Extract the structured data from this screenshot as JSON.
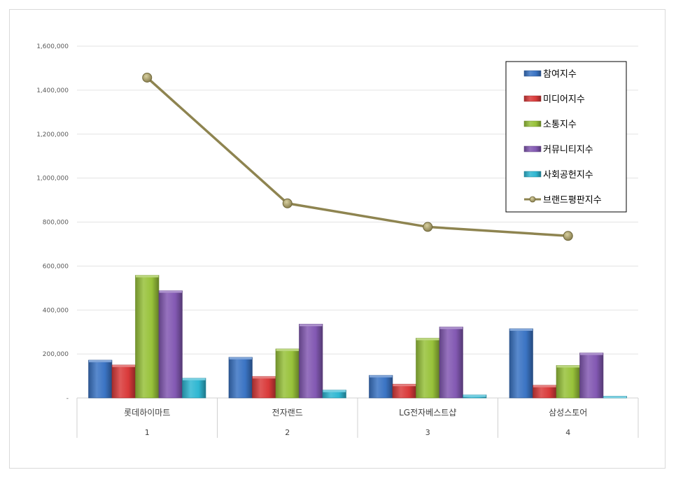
{
  "chart_data": {
    "type": "bar",
    "categories": [
      "롯데하이마트",
      "전자랜드",
      "LG전자베스트샵",
      "삼성스토어"
    ],
    "category_numbers": [
      "1",
      "2",
      "3",
      "4"
    ],
    "ylim": [
      0,
      1600000
    ],
    "yticks": [
      {
        "value": 0,
        "label": "-"
      },
      {
        "value": 200000,
        "label": "200,000"
      },
      {
        "value": 400000,
        "label": "400,000"
      },
      {
        "value": 600000,
        "label": "600,000"
      },
      {
        "value": 800000,
        "label": "800,000"
      },
      {
        "value": 1000000,
        "label": "1,000,000"
      },
      {
        "value": 1200000,
        "label": "1,200,000"
      },
      {
        "value": 1400000,
        "label": "1,400,000"
      },
      {
        "value": 1600000,
        "label": "1,600,000"
      }
    ],
    "grid": true,
    "legend_position": "top-right",
    "series": [
      {
        "name": "참여지수",
        "kind": "bar",
        "color": "#3b74c4",
        "values": [
          172000,
          185000,
          103000,
          315000
        ]
      },
      {
        "name": "미디어지수",
        "kind": "bar",
        "color": "#d93a3a",
        "values": [
          150000,
          98000,
          63000,
          58000
        ]
      },
      {
        "name": "소통지수",
        "kind": "bar",
        "color": "#98c23a",
        "values": [
          558000,
          223000,
          272000,
          148000
        ]
      },
      {
        "name": "커뮤니티지수",
        "kind": "bar",
        "color": "#8359b3",
        "values": [
          488000,
          336000,
          323000,
          205000
        ]
      },
      {
        "name": "사회공헌지수",
        "kind": "bar",
        "color": "#2fb7d2",
        "values": [
          90000,
          36000,
          14000,
          8000
        ]
      },
      {
        "name": "브랜드평판지수",
        "kind": "line",
        "color": "#8e8450",
        "marker_color": "#9e9460",
        "values": [
          1457000,
          885000,
          778000,
          737000
        ]
      }
    ]
  }
}
